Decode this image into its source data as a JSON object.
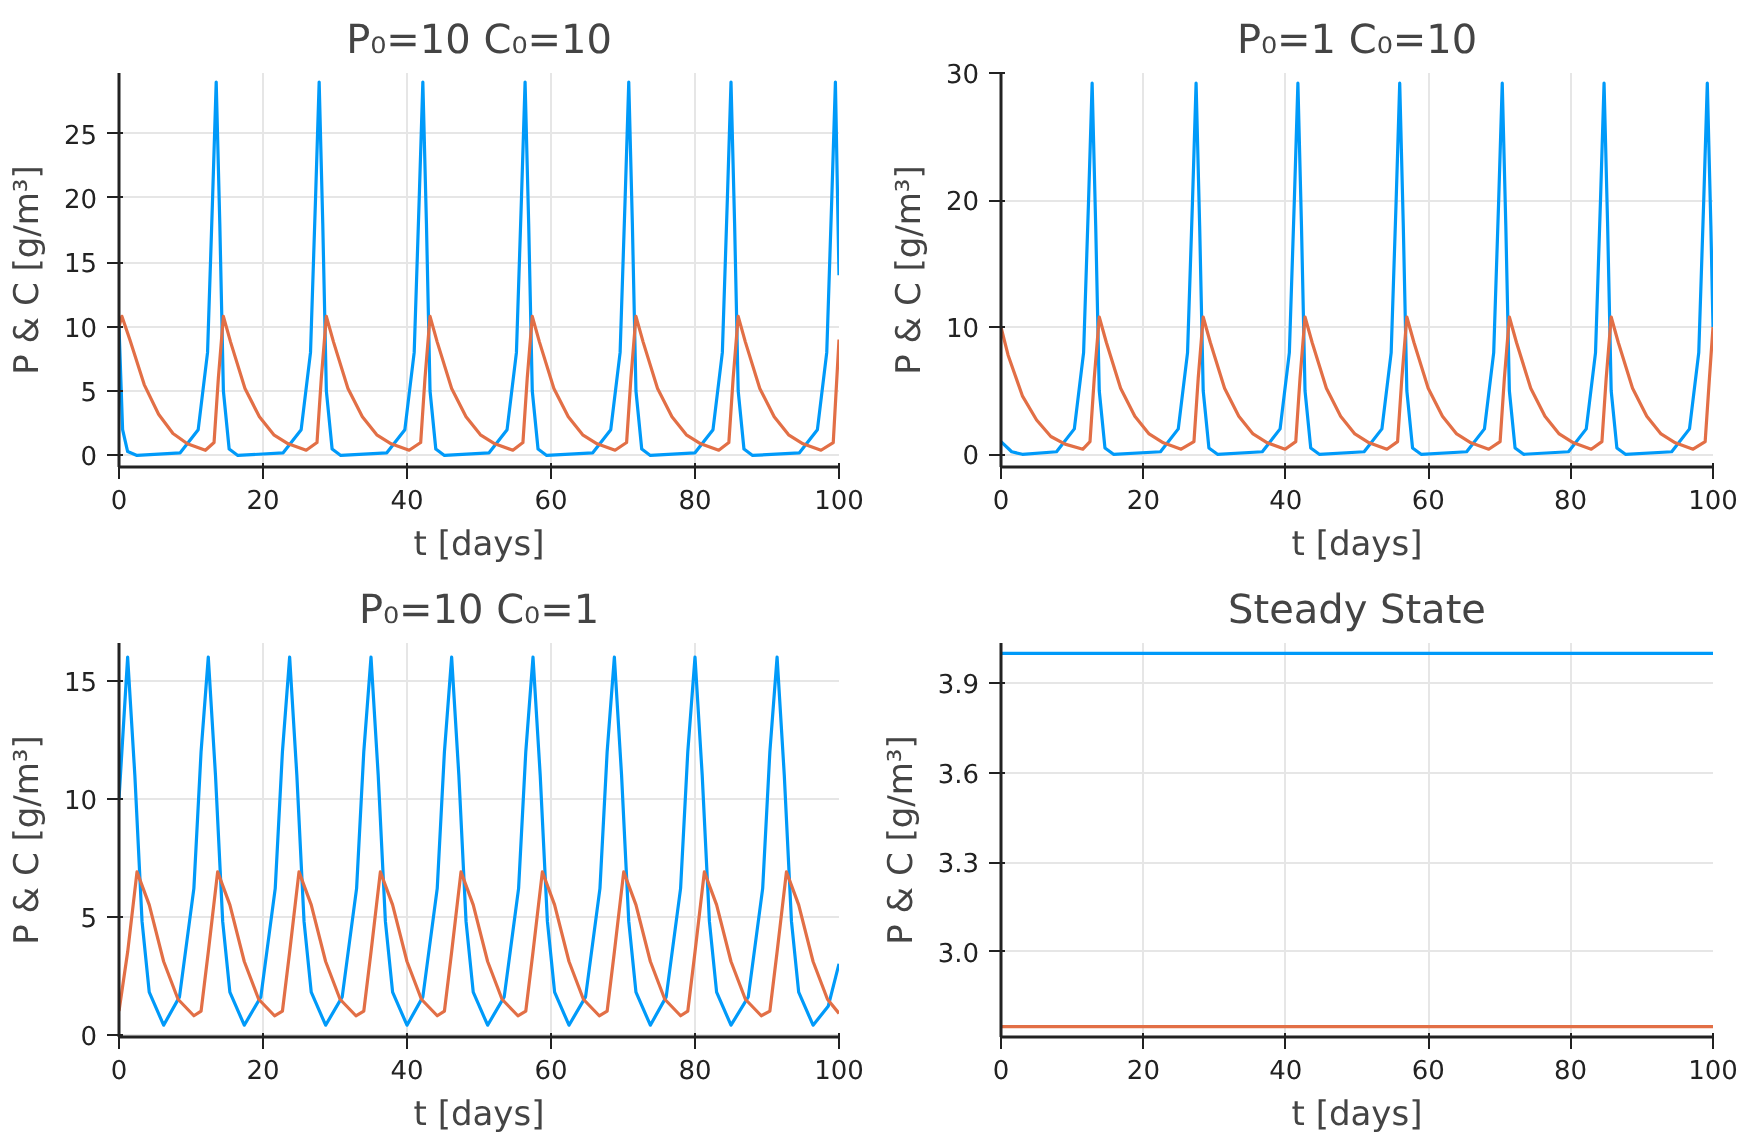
{
  "chart_data": [
    {
      "type": "line",
      "title": "P₀=10 C₀=10",
      "xlabel": "t [days]",
      "ylabel": "P & C [g/m³]",
      "xlim": [
        0,
        100
      ],
      "xticks": [
        0,
        20,
        40,
        60,
        80,
        100
      ],
      "ylim": [
        -0.9,
        29.7
      ],
      "yticks": [
        0,
        5,
        10,
        15,
        20,
        25
      ],
      "grid": true,
      "series": [
        {
          "color": "#009af9",
          "x": [
            0,
            0.5,
            1.2,
            2.5,
            8.5,
            11,
            12.3,
            13,
            13.5,
            14,
            14.5,
            15.3,
            16.5,
            22.8,
            25.3,
            26.6,
            27.3,
            27.8,
            28.3,
            28.8,
            29.6,
            30.8,
            37.2,
            39.7,
            41,
            41.7,
            42.2,
            42.7,
            43.2,
            44,
            45.2,
            51.4,
            53.9,
            55.2,
            55.9,
            56.4,
            56.9,
            57.4,
            58.2,
            59.4,
            65.8,
            68.3,
            69.6,
            70.3,
            70.8,
            71.3,
            71.8,
            72.6,
            73.8,
            80,
            82.5,
            83.8,
            84.5,
            85,
            85.5,
            86,
            86.8,
            88,
            94.5,
            97,
            98.3,
            99,
            99.5,
            100
          ],
          "values": [
            10,
            2,
            0.3,
            0,
            0.2,
            2,
            8,
            20,
            29,
            18,
            5,
            0.5,
            0,
            0.2,
            2,
            8,
            20,
            29,
            18,
            5,
            0.5,
            0,
            0.2,
            2,
            8,
            20,
            29,
            18,
            5,
            0.5,
            0,
            0.2,
            2,
            8,
            20,
            29,
            18,
            5,
            0.5,
            0,
            0.2,
            2,
            8,
            20,
            29,
            18,
            5,
            0.5,
            0,
            0.2,
            2,
            8,
            20,
            29,
            18,
            5,
            0.5,
            0,
            0.2,
            2,
            8,
            20,
            29,
            14
          ]
        },
        {
          "color": "#e26f46",
          "x": [
            0,
            0.4,
            1.5,
            3.5,
            5.5,
            7.5,
            9.5,
            12,
            13.2,
            13.8,
            14.5,
            15.5,
            17.5,
            19.5,
            21.5,
            23.5,
            26,
            27.5,
            28.1,
            28.8,
            29.8,
            31.8,
            33.8,
            35.8,
            37.8,
            40.3,
            41.9,
            42.5,
            43.2,
            44.2,
            46.2,
            48.2,
            50.2,
            52.2,
            54.7,
            56.1,
            56.7,
            57.4,
            58.4,
            60.4,
            62.4,
            64.4,
            66.4,
            68.9,
            70.5,
            71.1,
            71.8,
            72.8,
            74.8,
            76.8,
            78.8,
            80.8,
            83.3,
            84.7,
            85.3,
            86,
            87,
            89,
            91,
            93,
            95,
            97.5,
            99.2,
            100
          ],
          "values": [
            10,
            10.8,
            9,
            5.5,
            3.2,
            1.7,
            0.9,
            0.4,
            1,
            6,
            10.8,
            8.8,
            5.2,
            3,
            1.6,
            0.9,
            0.4,
            1,
            6,
            10.8,
            8.8,
            5.2,
            3,
            1.6,
            0.9,
            0.4,
            1,
            6,
            10.8,
            8.8,
            5.2,
            3,
            1.6,
            0.9,
            0.4,
            1,
            6,
            10.8,
            8.8,
            5.2,
            3,
            1.6,
            0.9,
            0.4,
            1,
            6,
            10.8,
            8.8,
            5.2,
            3,
            1.6,
            0.9,
            0.4,
            1,
            6,
            10.8,
            8.8,
            5.2,
            3,
            1.6,
            0.9,
            0.4,
            1,
            9
          ]
        }
      ]
    },
    {
      "type": "line",
      "title": "P₀=1 C₀=10",
      "xlabel": "t [days]",
      "ylabel": "P & C [g/m³]",
      "xlim": [
        0,
        100
      ],
      "xticks": [
        0,
        20,
        40,
        60,
        80,
        100
      ],
      "ylim": [
        -1,
        30
      ],
      "yticks": [
        0,
        10,
        20,
        30
      ],
      "grid": true,
      "series": [
        {
          "color": "#009af9",
          "x": [
            0,
            1.5,
            3,
            7.8,
            10.3,
            11.6,
            12.3,
            12.8,
            13.3,
            13.8,
            14.6,
            15.8,
            22.4,
            24.9,
            26.2,
            26.9,
            27.4,
            27.9,
            28.4,
            29.2,
            30.4,
            36.7,
            39.2,
            40.5,
            41.2,
            41.7,
            42.2,
            42.7,
            43.5,
            44.7,
            51,
            53.5,
            54.8,
            55.5,
            56,
            56.5,
            57,
            57.8,
            59,
            65.4,
            67.9,
            69.2,
            69.9,
            70.4,
            70.9,
            71.4,
            72.2,
            73.4,
            79.7,
            82.2,
            83.5,
            84.2,
            84.7,
            85.2,
            85.7,
            86.5,
            87.7,
            94.2,
            96.7,
            98,
            98.7,
            99.2,
            99.7,
            100
          ],
          "values": [
            1,
            0.2,
            0,
            0.2,
            2,
            8,
            20,
            29.2,
            18,
            5,
            0.5,
            0,
            0.2,
            2,
            8,
            20,
            29.2,
            18,
            5,
            0.5,
            0,
            0.2,
            2,
            8,
            20,
            29.2,
            18,
            5,
            0.5,
            0,
            0.2,
            2,
            8,
            20,
            29.2,
            18,
            5,
            0.5,
            0,
            0.2,
            2,
            8,
            20,
            29.2,
            18,
            5,
            0.5,
            0,
            0.2,
            2,
            8,
            20,
            29.2,
            18,
            5,
            0.5,
            0,
            0.2,
            2,
            8,
            20,
            29.2,
            18,
            10
          ]
        },
        {
          "color": "#e26f46",
          "x": [
            0,
            1,
            3,
            5,
            7,
            9,
            11.5,
            12.5,
            13.1,
            13.8,
            14.8,
            16.8,
            18.8,
            20.8,
            22.8,
            25.3,
            27.1,
            27.7,
            28.4,
            29.4,
            31.4,
            33.4,
            35.4,
            37.4,
            39.9,
            41.4,
            42,
            42.7,
            43.7,
            45.7,
            47.7,
            49.7,
            51.7,
            54.2,
            55.7,
            56.3,
            57,
            58,
            60,
            62,
            64,
            66,
            68.5,
            70.1,
            70.7,
            71.4,
            72.4,
            74.4,
            76.4,
            78.4,
            80.4,
            82.9,
            84.4,
            85,
            85.7,
            86.7,
            88.7,
            90.7,
            92.7,
            94.7,
            97.2,
            98.9,
            99.5,
            100
          ],
          "values": [
            10,
            7.8,
            4.6,
            2.7,
            1.4,
            0.8,
            0.4,
            1,
            6,
            10.8,
            8.8,
            5.2,
            3,
            1.6,
            0.9,
            0.4,
            1,
            6,
            10.8,
            8.8,
            5.2,
            3,
            1.6,
            0.9,
            0.4,
            1,
            6,
            10.8,
            8.8,
            5.2,
            3,
            1.6,
            0.9,
            0.4,
            1,
            6,
            10.8,
            8.8,
            5.2,
            3,
            1.6,
            0.9,
            0.4,
            1,
            6,
            10.8,
            8.8,
            5.2,
            3,
            1.6,
            0.9,
            0.4,
            1,
            6,
            10.8,
            8.8,
            5.2,
            3,
            1.6,
            0.9,
            0.4,
            1,
            6,
            10
          ]
        }
      ]
    },
    {
      "type": "line",
      "title": "P₀=10 C₀=1",
      "xlabel": "t [days]",
      "ylabel": "P & C [g/m³]",
      "xlim": [
        0,
        100
      ],
      "xticks": [
        0,
        20,
        40,
        60,
        80,
        100
      ],
      "ylim": [
        -0.1,
        16.6
      ],
      "yticks": [
        0,
        5,
        10,
        15
      ],
      "grid": true,
      "series": [
        {
          "color": "#009af9",
          "x": [
            0,
            1.2,
            2.2,
            3.2,
            4.2,
            6.2,
            8.4,
            10.4,
            11.4,
            12.4,
            13.4,
            14.4,
            15.4,
            17.4,
            19.7,
            21.7,
            22.7,
            23.7,
            24.7,
            25.7,
            26.7,
            28.7,
            31,
            33,
            34,
            35,
            36,
            37,
            38,
            40,
            42.2,
            44.2,
            45.2,
            46.2,
            47.2,
            48.2,
            49.2,
            51.2,
            53.5,
            55.5,
            56.5,
            57.5,
            58.5,
            59.5,
            60.5,
            62.5,
            64.8,
            66.8,
            67.8,
            68.8,
            69.8,
            70.8,
            71.8,
            73.8,
            76,
            78,
            79,
            80,
            81,
            82,
            83,
            85,
            87.4,
            89.4,
            90.4,
            91.4,
            92.4,
            93.4,
            94.4,
            96.4,
            98.5,
            100
          ],
          "values": [
            10,
            16,
            11,
            4.8,
            1.8,
            0.4,
            1.6,
            6.2,
            12,
            16,
            11,
            4.8,
            1.8,
            0.4,
            1.6,
            6.2,
            12,
            16,
            11,
            4.8,
            1.8,
            0.4,
            1.6,
            6.2,
            12,
            16,
            11,
            4.8,
            1.8,
            0.4,
            1.6,
            6.2,
            12,
            16,
            11,
            4.8,
            1.8,
            0.4,
            1.6,
            6.2,
            12,
            16,
            11,
            4.8,
            1.8,
            0.4,
            1.6,
            6.2,
            12,
            16,
            11,
            4.8,
            1.8,
            0.4,
            1.6,
            6.2,
            12,
            16,
            11,
            4.8,
            1.8,
            0.4,
            1.6,
            6.2,
            12,
            16,
            11,
            4.8,
            1.8,
            0.4,
            1.2,
            3
          ]
        },
        {
          "color": "#e26f46",
          "x": [
            0,
            1.2,
            2.5,
            4.2,
            6.2,
            8.2,
            10.4,
            11.4,
            12.4,
            13.7,
            15.4,
            17.4,
            19.4,
            21.6,
            22.7,
            23.7,
            25,
            26.7,
            28.7,
            30.7,
            32.9,
            34,
            35,
            36.3,
            38,
            40,
            42,
            44.2,
            45.2,
            46.2,
            47.5,
            49.2,
            51.2,
            53.2,
            55.4,
            56.5,
            57.5,
            58.8,
            60.5,
            62.5,
            64.5,
            66.7,
            67.8,
            68.8,
            70.1,
            71.8,
            73.8,
            75.8,
            78,
            79,
            80,
            81.3,
            83,
            85,
            87,
            89.2,
            90.4,
            91.4,
            92.7,
            94.4,
            96.4,
            98.4,
            100
          ],
          "values": [
            1,
            3.5,
            6.9,
            5.5,
            3.1,
            1.5,
            0.8,
            1,
            3.5,
            6.9,
            5.5,
            3.1,
            1.5,
            0.8,
            1,
            3.5,
            6.9,
            5.5,
            3.1,
            1.5,
            0.8,
            1,
            3.5,
            6.9,
            5.5,
            3.1,
            1.5,
            0.8,
            1,
            3.5,
            6.9,
            5.5,
            3.1,
            1.5,
            0.8,
            1,
            3.5,
            6.9,
            5.5,
            3.1,
            1.5,
            0.8,
            1,
            3.5,
            6.9,
            5.5,
            3.1,
            1.5,
            0.8,
            1,
            3.5,
            6.9,
            5.5,
            3.1,
            1.5,
            0.8,
            1,
            3.5,
            6.9,
            5.5,
            3.1,
            1.5,
            0.9
          ]
        }
      ]
    },
    {
      "type": "line",
      "title": "Steady State",
      "xlabel": "t [days]",
      "ylabel": "P & C [g/m³]",
      "xlim": [
        0,
        100
      ],
      "xticks": [
        0,
        20,
        40,
        60,
        80,
        100
      ],
      "ylim": [
        2.715,
        4.035
      ],
      "yticks": [
        {
          "value": 3.0,
          "label": "3.0"
        },
        {
          "value": 3.3,
          "label": "3.3"
        },
        {
          "value": 3.6,
          "label": "3.6"
        },
        {
          "value": 3.9,
          "label": "3.9"
        }
      ],
      "grid": true,
      "series": [
        {
          "color": "#009af9",
          "x": [
            0,
            100
          ],
          "values": [
            4,
            4
          ]
        },
        {
          "color": "#e26f46",
          "x": [
            0,
            100
          ],
          "values": [
            2.75,
            2.75
          ]
        }
      ]
    }
  ]
}
